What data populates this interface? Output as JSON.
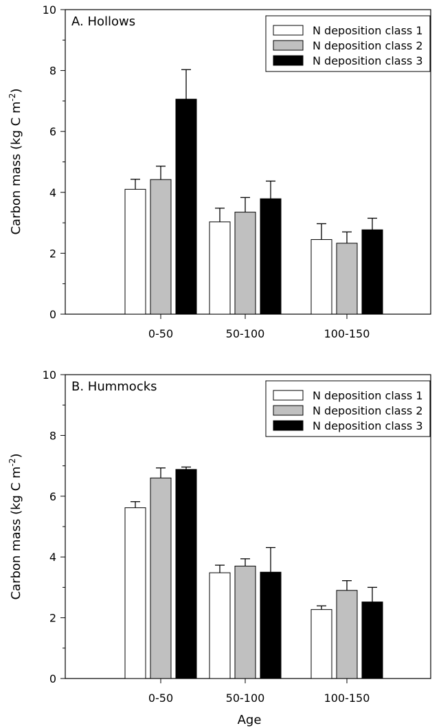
{
  "chart_data": [
    {
      "type": "bar",
      "title": "A.  Hollows",
      "ylabel": "Carbon mass (kg C m",
      "ylabel_superscript": "-2",
      "ylabel_close": ")",
      "xlabel": "",
      "ylim": [
        0,
        10
      ],
      "yticks": [
        "0",
        "2",
        "4",
        "6",
        "8",
        "10"
      ],
      "categories": [
        "0-50",
        "50-100",
        "100-150"
      ],
      "legend_position": "top-right",
      "series": [
        {
          "name": "N deposition class 1",
          "color": "#ffffff",
          "values": [
            4.1,
            3.03,
            2.45
          ],
          "errors": [
            0.33,
            0.45,
            0.52
          ]
        },
        {
          "name": "N deposition class 2",
          "color": "#c0c0c0",
          "values": [
            4.42,
            3.35,
            2.33
          ],
          "errors": [
            0.44,
            0.48,
            0.37
          ]
        },
        {
          "name": "N deposition class 3",
          "color": "#000000",
          "values": [
            7.06,
            3.79,
            2.77
          ],
          "errors": [
            0.97,
            0.58,
            0.38
          ]
        }
      ]
    },
    {
      "type": "bar",
      "title": "B.  Hummocks",
      "ylabel": "Carbon mass (kg C m",
      "ylabel_superscript": "-2",
      "ylabel_close": ")",
      "xlabel": "Age",
      "ylim": [
        0,
        10
      ],
      "yticks": [
        "0",
        "2",
        "4",
        "6",
        "8",
        "10"
      ],
      "categories": [
        "0-50",
        "50-100",
        "100-150"
      ],
      "legend_position": "top-right",
      "series": [
        {
          "name": "N deposition class 1",
          "color": "#ffffff",
          "values": [
            5.62,
            3.48,
            2.27
          ],
          "errors": [
            0.2,
            0.25,
            0.12
          ]
        },
        {
          "name": "N deposition class 2",
          "color": "#c0c0c0",
          "values": [
            6.6,
            3.7,
            2.9
          ],
          "errors": [
            0.33,
            0.24,
            0.32
          ]
        },
        {
          "name": "N deposition class 3",
          "color": "#000000",
          "values": [
            6.88,
            3.5,
            2.52
          ],
          "errors": [
            0.08,
            0.81,
            0.48
          ]
        }
      ]
    }
  ]
}
